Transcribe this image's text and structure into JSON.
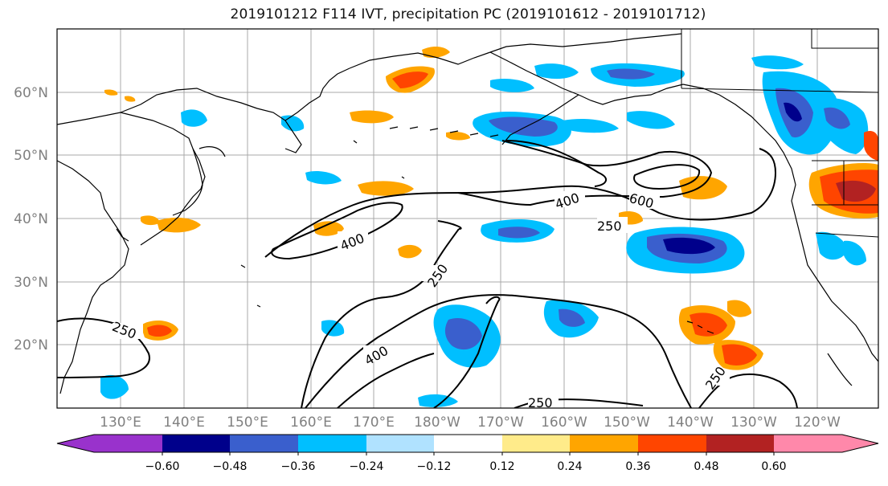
{
  "title": "2019101212 F114 IVT, precipitation PC (2019101612 - 2019101712)",
  "lat_labels": [
    "60°N",
    "50°N",
    "40°N",
    "30°N",
    "20°N"
  ],
  "lon_labels": [
    "130°E",
    "140°E",
    "150°E",
    "160°E",
    "170°E",
    "180°W",
    "170°W",
    "160°W",
    "150°W",
    "140°W",
    "130°W",
    "120°W"
  ],
  "contour_labels": [
    "400",
    "600",
    "400",
    "250",
    "250",
    "250",
    "400",
    "250",
    "250"
  ],
  "colorbar": {
    "ticks": [
      "−0.60",
      "−0.48",
      "−0.36",
      "−0.24",
      "−0.12",
      "0.12",
      "0.24",
      "0.36",
      "0.48",
      "0.60"
    ],
    "colors": [
      "#9932cc",
      "#00008b",
      "#3a5fcd",
      "#00bfff",
      "#b0e2ff",
      "#ffffff",
      "#ffeb8a",
      "#ffa500",
      "#ff4500",
      "#b22222",
      "#ff88aa"
    ]
  }
}
